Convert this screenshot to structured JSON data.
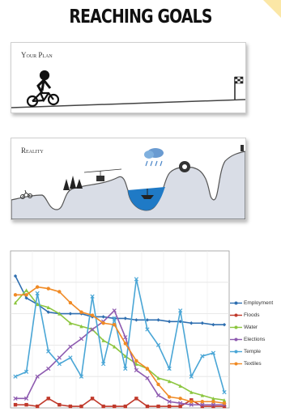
{
  "title": "REACHING GOALS",
  "panels": {
    "plan_label": "Your Plan",
    "reality_label": "Reality"
  },
  "colors": {
    "Employment": "#2f6fb0",
    "Floods": "#c0392b",
    "Water": "#8cc63f",
    "Elections": "#8e5bb0",
    "Temple": "#4aa6d6",
    "Textiles": "#f08a24"
  },
  "chart_data": {
    "type": "line",
    "title": "",
    "xlabel": "",
    "ylabel": "",
    "x": [
      1,
      2,
      3,
      4,
      5,
      6,
      7,
      8,
      9,
      10,
      11,
      12,
      13,
      14,
      15,
      16,
      17,
      18,
      19,
      20
    ],
    "ylim": [
      0,
      10
    ],
    "grid": true,
    "legend_placement": "right",
    "series": [
      {
        "name": "Employment",
        "values": [
          8.4,
          7.0,
          6.6,
          6.1,
          6.0,
          6.0,
          6.0,
          5.8,
          5.8,
          5.7,
          5.7,
          5.6,
          5.6,
          5.6,
          5.5,
          5.5,
          5.4,
          5.4,
          5.3,
          5.3
        ]
      },
      {
        "name": "Floods",
        "values": [
          0.2,
          0.2,
          0.1,
          0.6,
          0.2,
          0.1,
          0.1,
          0.6,
          0.1,
          0.1,
          0.1,
          0.6,
          0.1,
          0.1,
          0.1,
          0.1,
          0.5,
          0.1,
          0.1,
          0.1
        ]
      },
      {
        "name": "Water",
        "values": [
          6.7,
          7.5,
          6.6,
          6.4,
          6.0,
          5.4,
          5.2,
          5.0,
          4.3,
          3.9,
          3.3,
          2.8,
          2.5,
          1.9,
          1.7,
          1.4,
          1.0,
          0.8,
          0.6,
          0.5
        ]
      },
      {
        "name": "Elections",
        "values": [
          0.6,
          0.6,
          2.0,
          2.5,
          3.2,
          3.9,
          4.4,
          5.0,
          5.5,
          6.2,
          4.5,
          2.4,
          1.9,
          0.8,
          0.4,
          0.3,
          0.2,
          0.2,
          0.2,
          0.2
        ]
      },
      {
        "name": "Temple",
        "values": [
          2.0,
          2.3,
          7.3,
          3.6,
          2.8,
          3.2,
          2.0,
          7.1,
          2.8,
          5.7,
          2.5,
          8.2,
          5.0,
          4.0,
          2.5,
          6.2,
          2.0,
          3.3,
          3.5,
          1.0
        ]
      },
      {
        "name": "Textiles",
        "values": [
          7.2,
          7.2,
          7.7,
          7.6,
          7.4,
          6.7,
          6.1,
          5.9,
          5.4,
          5.3,
          4.1,
          3.0,
          2.5,
          1.5,
          0.7,
          0.6,
          0.4,
          0.4,
          0.4,
          0.3
        ]
      }
    ]
  }
}
